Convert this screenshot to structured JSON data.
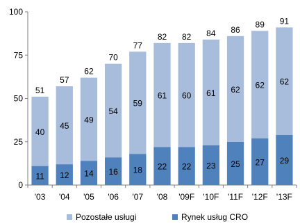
{
  "chart_data": {
    "type": "bar",
    "stacked": true,
    "categories": [
      "'03",
      "'04",
      "'05",
      "'06",
      "'07",
      "'08",
      "'09F",
      "'10F",
      "'11F",
      "'12F",
      "'13F"
    ],
    "series": [
      {
        "name": "Rynek usług CRO",
        "color": "#4f81bd",
        "values": [
          11,
          12,
          14,
          16,
          18,
          22,
          22,
          23,
          25,
          27,
          29
        ]
      },
      {
        "name": "Pozostałe usługi",
        "color": "#a8bcdc",
        "values": [
          40,
          45,
          49,
          54,
          59,
          61,
          60,
          61,
          62,
          62,
          62
        ]
      }
    ],
    "totals": [
      51,
      57,
      62,
      70,
      77,
      82,
      82,
      84,
      86,
      89,
      91
    ],
    "yticks": [
      0,
      25,
      50,
      75,
      100
    ],
    "ylim": [
      0,
      100
    ],
    "grid": false,
    "legend_position": "bottom",
    "legend_order": [
      "Pozostałe usługi",
      "Rynek usług CRO"
    ]
  }
}
